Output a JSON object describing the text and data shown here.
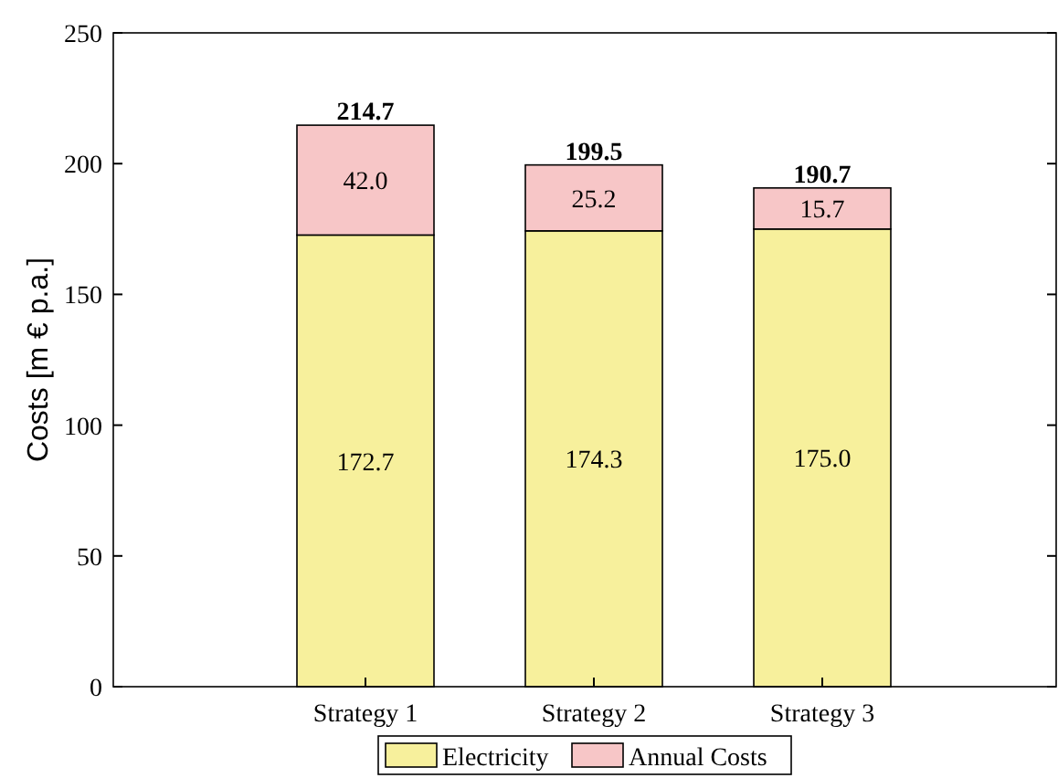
{
  "chart_data": {
    "type": "bar",
    "stacked": true,
    "ylabel": "Costs [m € p.a.]",
    "categories": [
      "Strategy 1",
      "Strategy 2",
      "Strategy 3"
    ],
    "series": [
      {
        "name": "Electricity",
        "color": "#f7f09c",
        "values": [
          172.7,
          174.3,
          175.0
        ],
        "value_labels": [
          "172.7",
          "174.3",
          "175.0"
        ]
      },
      {
        "name": "Annual Costs",
        "color": "#f7c6c7",
        "values": [
          42.0,
          25.2,
          15.7
        ],
        "value_labels": [
          "42.0",
          "25.2",
          "15.7"
        ]
      }
    ],
    "totals": [
      "214.7",
      "199.5",
      "190.7"
    ],
    "ylim": [
      0,
      250
    ],
    "yticks": [
      0,
      50,
      100,
      150,
      200,
      250
    ],
    "legend": "bottom",
    "grid": false
  }
}
